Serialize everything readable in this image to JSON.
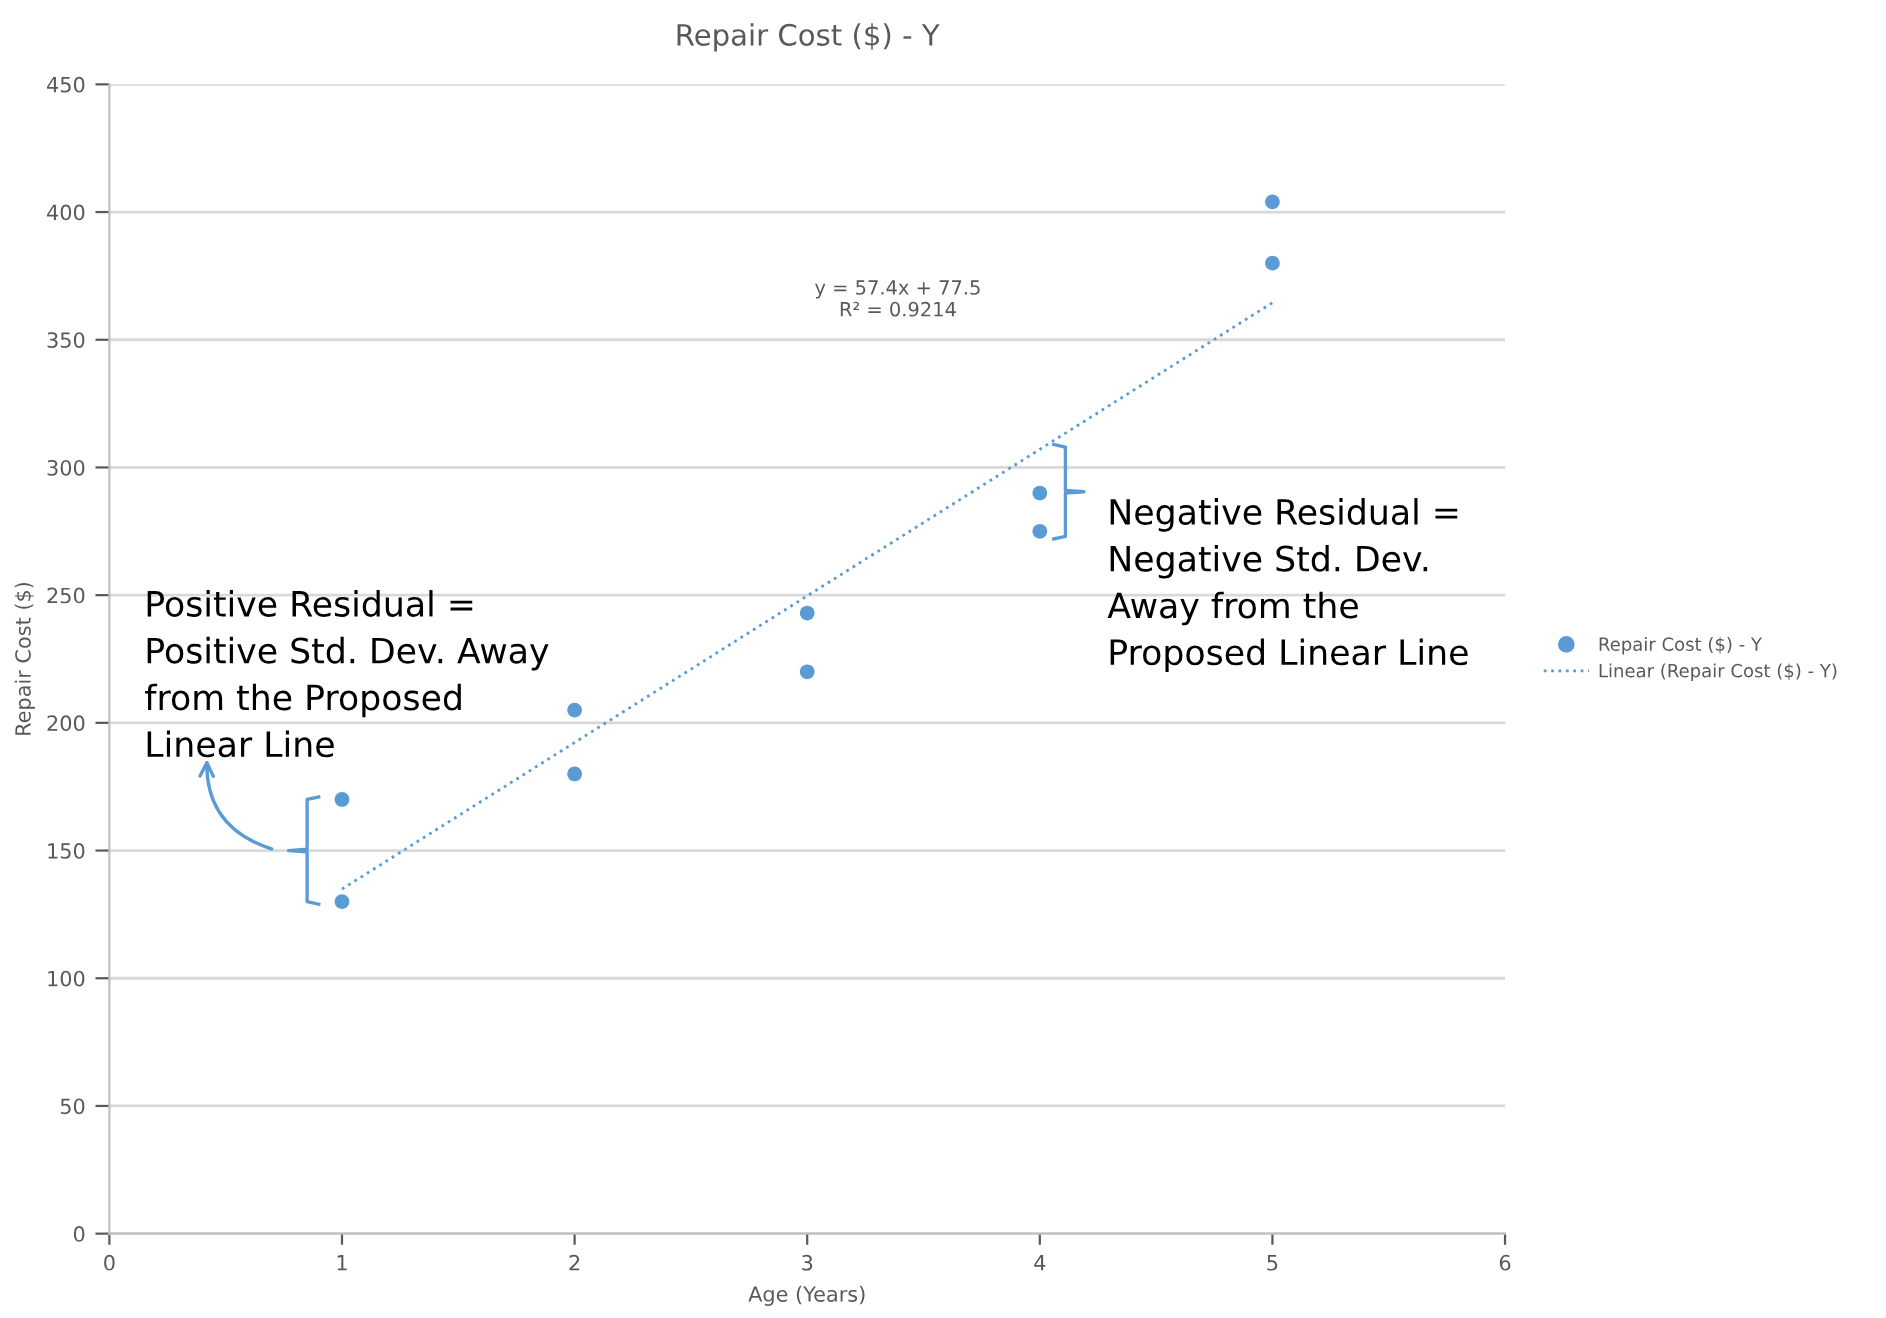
{
  "chart_data": {
    "type": "scatter",
    "title": "Repair Cost ($) - Y",
    "xlabel": "Age (Years)",
    "ylabel": "Repair Cost ($)",
    "x": [
      1,
      1,
      2,
      2,
      3,
      3,
      4,
      4,
      5,
      5
    ],
    "series": [
      {
        "name": "Repair Cost ($) - Y",
        "color": "#5b9bd5",
        "marker": "circle",
        "values": [
          130,
          170,
          180,
          205,
          220,
          243,
          275,
          290,
          380,
          404
        ]
      },
      {
        "name": "Linear (Repair Cost ($) - Y)",
        "type": "line",
        "color": "#5b9bd5",
        "line_style": "dotted",
        "marker": "none",
        "x": [
          1,
          5
        ],
        "values": [
          134.9,
          364.5
        ]
      }
    ],
    "xlim": [
      0,
      6
    ],
    "xticks": [
      0,
      1,
      2,
      3,
      4,
      5,
      6
    ],
    "ylim": [
      0,
      450
    ],
    "yticks": [
      0,
      50,
      100,
      150,
      200,
      250,
      300,
      350,
      400,
      450
    ],
    "grid": "y",
    "legend": "right",
    "annotations": [
      "y = 57.4x + 77.5\nR² = 0.9214",
      "Positive Residual =\nPositive Std. Dev. Away\nfrom the Proposed\nLinear Line",
      "Negative Residual =\nNegative Std. Dev.\nAway from the\nProposed Linear Line"
    ]
  }
}
